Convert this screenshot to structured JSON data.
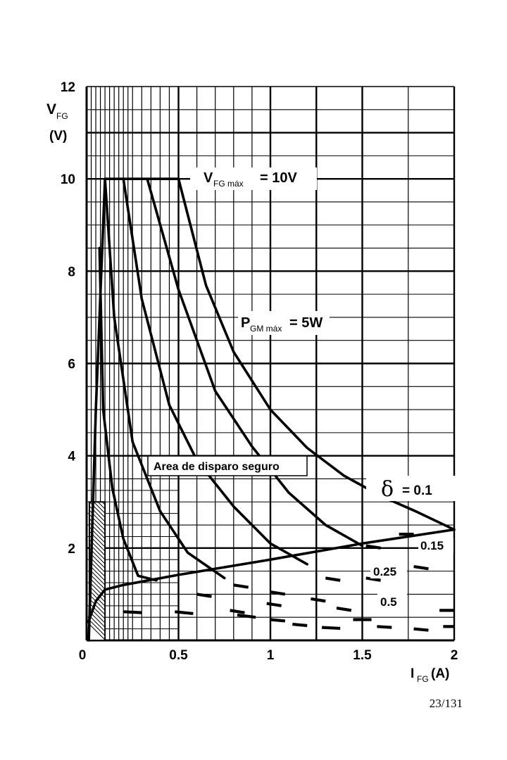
{
  "page_number": "23/131",
  "chart_data": {
    "type": "line",
    "y_axis": {
      "symbol": "V",
      "subscript": "FG",
      "unit": "(V)",
      "min": 0,
      "max": 12,
      "ticks": [
        "2",
        "4",
        "6",
        "8",
        "10",
        "12"
      ]
    },
    "x_axis": {
      "symbol": "I",
      "subscript": "FG",
      "unit": "(A)",
      "min": 0,
      "max": 2,
      "ticks": [
        "0",
        "0.5",
        "1",
        "1.5",
        "2"
      ]
    },
    "grid": true,
    "annotations": {
      "vfg_max": {
        "symbol": "V",
        "subscript": "FG máx",
        "value": "= 10V"
      },
      "pgm_max": {
        "symbol": "P",
        "subscript": "GM máx",
        "value": "= 5W"
      },
      "safe_area": "Area de disparo seguro",
      "delta_symbol": "δ",
      "delta_value": "= 0.1",
      "duty_cycles": [
        "0.15",
        "0.25",
        "0.5"
      ]
    },
    "series": [
      {
        "line": "boundary",
        "points": [
          [
            0.012,
            0
          ],
          [
            0.05,
            5
          ],
          [
            0.1,
            10
          ],
          [
            0.5,
            10
          ]
        ]
      },
      {
        "line": "δ = 0.1",
        "points": [
          [
            0.5,
            10
          ],
          [
            0.65,
            7.69
          ],
          [
            0.8,
            6.25
          ],
          [
            1.0,
            5.0
          ],
          [
            1.2,
            4.17
          ],
          [
            1.4,
            3.57
          ],
          [
            1.6,
            3.13
          ],
          [
            1.8,
            2.78
          ],
          [
            2.0,
            2.4
          ]
        ]
      },
      {
        "line": "δ = 0.15",
        "points": [
          [
            0.33,
            10
          ],
          [
            0.5,
            7.6
          ],
          [
            0.7,
            5.4
          ],
          [
            0.9,
            4.2
          ],
          [
            1.1,
            3.2
          ],
          [
            1.3,
            2.5
          ],
          [
            1.5,
            2.05
          ]
        ]
      },
      {
        "line": "δ = 0.25",
        "points": [
          [
            0.2,
            10
          ],
          [
            0.3,
            7.4
          ],
          [
            0.45,
            5.1
          ],
          [
            0.6,
            3.9
          ],
          [
            0.8,
            2.9
          ],
          [
            1.0,
            2.1
          ],
          [
            1.2,
            1.65
          ]
        ]
      },
      {
        "line": "δ = 0.5",
        "points": [
          [
            0.1,
            10
          ],
          [
            0.15,
            7.0
          ],
          [
            0.25,
            4.3
          ],
          [
            0.4,
            2.8
          ],
          [
            0.55,
            1.9
          ],
          [
            0.75,
            1.35
          ]
        ]
      },
      {
        "line": "δ = 0.1 (lower)",
        "points": [
          [
            0.07,
            8.5
          ],
          [
            0.09,
            5.0
          ],
          [
            0.14,
            3.3
          ],
          [
            0.2,
            2.2
          ],
          [
            0.28,
            1.4
          ],
          [
            0.38,
            1.3
          ]
        ]
      },
      {
        "line": "gate characteristic",
        "points": [
          [
            0.01,
            0.4
          ],
          [
            0.05,
            0.85
          ],
          [
            0.1,
            1.1
          ],
          [
            0.2,
            1.2
          ],
          [
            0.5,
            1.42
          ],
          [
            1.0,
            1.75
          ],
          [
            1.5,
            2.1
          ],
          [
            2.0,
            2.4
          ]
        ]
      }
    ],
    "dashed_segments": [
      [
        [
          0.6,
          1.0
        ],
        [
          0.68,
          0.95
        ]
      ],
      [
        [
          0.8,
          1.2
        ],
        [
          0.88,
          1.15
        ]
      ],
      [
        [
          1.0,
          1.05
        ],
        [
          1.08,
          1.0
        ]
      ],
      [
        [
          1.3,
          1.35
        ],
        [
          1.38,
          1.3
        ]
      ],
      [
        [
          1.52,
          1.35
        ],
        [
          1.6,
          1.3
        ]
      ],
      [
        [
          1.78,
          1.6
        ],
        [
          1.86,
          1.55
        ]
      ],
      [
        [
          1.9,
          1.95
        ],
        [
          1.98,
          1.95
        ]
      ],
      [
        [
          1.52,
          2.05
        ],
        [
          1.6,
          2.0
        ]
      ],
      [
        [
          1.7,
          2.3
        ],
        [
          1.78,
          2.3
        ]
      ],
      [
        [
          0.78,
          0.65
        ],
        [
          0.86,
          0.6
        ]
      ],
      [
        [
          0.98,
          0.8
        ],
        [
          1.06,
          0.75
        ]
      ],
      [
        [
          1.22,
          0.9
        ],
        [
          1.3,
          0.85
        ]
      ],
      [
        [
          1.36,
          0.7
        ],
        [
          1.44,
          0.65
        ]
      ],
      [
        [
          1.45,
          0.45
        ],
        [
          1.55,
          0.45
        ]
      ],
      [
        [
          0.2,
          0.62
        ],
        [
          0.3,
          0.6
        ]
      ],
      [
        [
          0.48,
          0.62
        ],
        [
          0.58,
          0.58
        ]
      ],
      [
        [
          0.82,
          0.55
        ],
        [
          0.92,
          0.5
        ]
      ],
      [
        [
          1.0,
          0.45
        ],
        [
          1.08,
          0.42
        ]
      ],
      [
        [
          1.12,
          0.35
        ],
        [
          1.2,
          0.32
        ]
      ],
      [
        [
          1.28,
          0.28
        ],
        [
          1.38,
          0.26
        ]
      ],
      [
        [
          1.58,
          0.3
        ],
        [
          1.66,
          0.28
        ]
      ],
      [
        [
          1.78,
          0.25
        ],
        [
          1.86,
          0.22
        ]
      ],
      [
        [
          1.94,
          0.3
        ],
        [
          2.0,
          0.3
        ]
      ],
      [
        [
          1.92,
          0.65
        ],
        [
          2.0,
          0.65
        ]
      ]
    ]
  }
}
